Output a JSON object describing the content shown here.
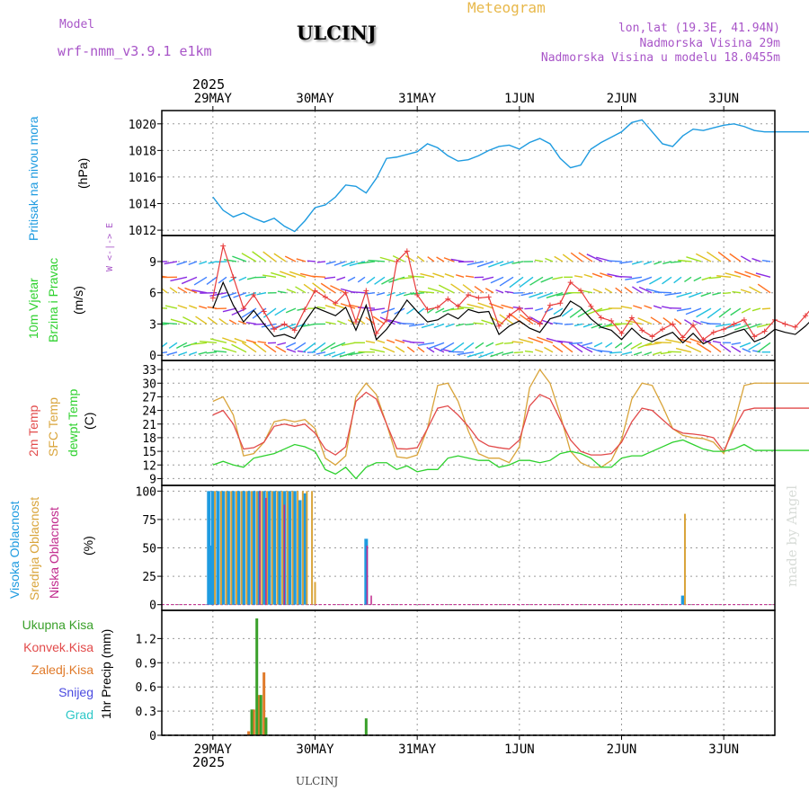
{
  "header": {
    "model_label": "Model",
    "model_name": "wrf-nmm_v3.9.1 e1km",
    "station": "ULCINJ",
    "product": "Meteogram",
    "lonlat": "lon,lat (19.3E, 41.94N)",
    "elevation": "Nadmorska Visina 29m",
    "model_elevation": "Nadmorska Visina u modelu 18.0455m",
    "year_top": "2025",
    "year_bottom": "2025",
    "footer_station": "ULCINJ",
    "watermark": "made by Angel",
    "compass": "W <-|-> E"
  },
  "colors": {
    "pressure": "#1e9be0",
    "wind_speed": "#000000",
    "gust": "#e83c3c",
    "t2m": "#e24a4a",
    "sfc": "#d9a43a",
    "dewpt": "#2ed12e",
    "high_cloud": "#1e9be0",
    "mid_cloud": "#d9a43a",
    "low_cloud": "#c0288c",
    "total_precip": "#3aa02a",
    "convective": "#e24a4a",
    "frozen": "#e07a2a",
    "snow": "#4a4ae0",
    "hail": "#2ec8c8"
  },
  "chart_data": [
    {
      "type": "line",
      "panel": "pressure",
      "ylabel_title": "Pritisak na nivou mora",
      "ylabel_unit": "(hPa)",
      "x_days": [
        0,
        0.1,
        0.2,
        0.3,
        0.4,
        0.5,
        0.6,
        0.7,
        0.8,
        0.9,
        1.0,
        1.1,
        1.2,
        1.3,
        1.4,
        1.5,
        1.6,
        1.7,
        1.8,
        1.9,
        2.0,
        2.1,
        2.2,
        2.3,
        2.4,
        2.5,
        2.6,
        2.7,
        2.8,
        2.9,
        3.0,
        3.1,
        3.2,
        3.3,
        3.4,
        3.5,
        3.6,
        3.7,
        3.8,
        3.9,
        4.0,
        4.1,
        4.2,
        4.3,
        4.4,
        4.5,
        4.6,
        4.7,
        4.8,
        4.9,
        5.0,
        5.1,
        5.2,
        5.3,
        5.4,
        5.5,
        5.6,
        5.7,
        5.8,
        5.9,
        6.0
      ],
      "values": [
        1014.5,
        1013.5,
        1013.0,
        1013.3,
        1012.9,
        1012.6,
        1012.9,
        1012.3,
        1011.9,
        1012.7,
        1013.7,
        1013.9,
        1014.5,
        1015.4,
        1015.3,
        1014.8,
        1015.9,
        1017.4,
        1017.5,
        1017.7,
        1017.9,
        1018.5,
        1018.2,
        1017.6,
        1017.2,
        1017.3,
        1017.6,
        1018.0,
        1018.3,
        1018.4,
        1018.1,
        1018.6,
        1018.9,
        1018.5,
        1017.4,
        1016.7,
        1016.9,
        1018.1,
        1018.6,
        1019.0,
        1019.4,
        1020.1,
        1020.3,
        1019.4,
        1018.5,
        1018.3,
        1019.1,
        1019.6,
        1019.5,
        1019.7,
        1019.9,
        1020.0,
        1019.8,
        1019.5,
        1019.4,
        1019.4,
        1019.4,
        1019.4,
        1019.4,
        1019.4,
        1019.4
      ],
      "ylim": [
        1011.6,
        1021.0
      ],
      "yticks": [
        1012,
        1014,
        1016,
        1018,
        1020
      ]
    },
    {
      "type": "line",
      "panel": "wind",
      "ylabel_title": "10m Vjetar",
      "ylabel_sub": "Brzina i Pravac",
      "ylabel_unit": "(m/s)",
      "x_days": [
        0,
        0.1,
        0.2,
        0.3,
        0.4,
        0.5,
        0.6,
        0.7,
        0.8,
        0.9,
        1.0,
        1.1,
        1.2,
        1.3,
        1.4,
        1.5,
        1.6,
        1.7,
        1.8,
        1.9,
        2.0,
        2.1,
        2.2,
        2.3,
        2.4,
        2.5,
        2.6,
        2.7,
        2.8,
        2.9,
        3.0,
        3.1,
        3.2,
        3.3,
        3.4,
        3.5,
        3.6,
        3.7,
        3.8,
        3.9,
        4.0,
        4.1,
        4.2,
        4.3,
        4.4,
        4.5,
        4.6,
        4.7,
        4.8,
        4.9,
        5.0,
        5.1,
        5.2,
        5.3,
        5.4,
        5.5,
        5.6,
        5.7,
        5.8,
        5.9,
        6.0
      ],
      "speed": [
        4.5,
        7.0,
        4.8,
        3.2,
        4.3,
        3.0,
        1.8,
        2.0,
        1.6,
        3.2,
        4.6,
        4.2,
        3.8,
        4.6,
        2.4,
        4.8,
        1.5,
        2.5,
        3.8,
        5.3,
        4.2,
        3.2,
        3.4,
        4.0,
        3.5,
        4.4,
        4.1,
        4.2,
        2.0,
        2.8,
        3.3,
        2.6,
        2.2,
        3.5,
        3.8,
        5.2,
        4.6,
        3.5,
        2.7,
        2.4,
        1.5,
        2.6,
        1.7,
        1.3,
        1.8,
        2.2,
        1.2,
        2.1,
        1.1,
        1.6,
        1.8,
        2.2,
        2.5,
        1.3,
        1.7,
        2.5,
        2.2,
        2.0,
        2.8,
        3.8,
        4.2
      ],
      "gust": [
        5.5,
        10.5,
        7.5,
        4.5,
        5.8,
        4.2,
        2.5,
        3.0,
        2.4,
        4.4,
        6.2,
        5.6,
        5.0,
        6.0,
        3.2,
        6.2,
        2.1,
        3.4,
        9.0,
        10.0,
        5.8,
        4.4,
        4.6,
        5.4,
        4.7,
        5.8,
        5.5,
        5.6,
        2.8,
        3.8,
        4.5,
        3.5,
        3.0,
        4.8,
        5.0,
        7.0,
        6.2,
        4.7,
        3.6,
        3.3,
        2.1,
        3.6,
        2.4,
        1.8,
        2.5,
        3.0,
        1.7,
        2.9,
        1.5,
        2.2,
        2.5,
        3.0,
        3.4,
        1.8,
        2.3,
        3.4,
        3.0,
        2.7,
        3.8,
        5.0,
        5.5
      ],
      "ylim": [
        -0.5,
        11.5
      ],
      "yticks": [
        0,
        3,
        6,
        9
      ]
    },
    {
      "type": "line",
      "panel": "temperature",
      "ylabel_title": "2m Temp",
      "ylabel_sub": "SFC Temp",
      "ylabel_sub2": "dewpt Temp",
      "ylabel_unit": "(C)",
      "x_days": [
        0,
        0.1,
        0.2,
        0.3,
        0.4,
        0.5,
        0.6,
        0.7,
        0.8,
        0.9,
        1.0,
        1.1,
        1.2,
        1.3,
        1.4,
        1.5,
        1.6,
        1.7,
        1.8,
        1.9,
        2.0,
        2.1,
        2.2,
        2.3,
        2.4,
        2.5,
        2.6,
        2.7,
        2.8,
        2.9,
        3.0,
        3.1,
        3.2,
        3.3,
        3.4,
        3.5,
        3.6,
        3.7,
        3.8,
        3.9,
        4.0,
        4.1,
        4.2,
        4.3,
        4.4,
        4.5,
        4.6,
        4.7,
        4.8,
        4.9,
        5.0,
        5.1,
        5.2,
        5.3,
        5.4,
        5.5,
        5.6,
        5.7,
        5.8,
        5.9,
        6.0
      ],
      "t2m": [
        23,
        24,
        21,
        15.5,
        15.8,
        17,
        20.5,
        21,
        20.5,
        21,
        19,
        15.5,
        14.2,
        16,
        26,
        28,
        26.5,
        21,
        15.6,
        15.5,
        15.8,
        20,
        24.5,
        25,
        23,
        20.5,
        17.5,
        16.2,
        15.8,
        15.5,
        17.5,
        25,
        27.5,
        26.5,
        22,
        17.5,
        15,
        14.2,
        14.2,
        14.5,
        17,
        21.5,
        24.5,
        24,
        22,
        20,
        19,
        18.8,
        18.5,
        18,
        15,
        20,
        24,
        24.5,
        24.5,
        24.5,
        24.5,
        24.5,
        24.5,
        24.5,
        24.5
      ],
      "sfc": [
        26,
        27,
        23,
        14,
        14.5,
        17,
        21.5,
        22,
        21.5,
        22,
        20,
        13.5,
        12,
        14,
        27,
        30,
        27.5,
        21,
        13.8,
        13.5,
        14.2,
        20,
        29.5,
        30,
        26,
        19.5,
        14.5,
        13.5,
        13.5,
        12.5,
        16,
        29,
        33,
        30,
        23,
        15,
        12.5,
        11.5,
        11.5,
        13,
        17.5,
        26.5,
        30,
        29.5,
        25,
        20,
        18.5,
        18,
        17.8,
        17,
        14.5,
        21,
        29.5,
        30,
        30,
        30,
        30,
        30,
        30,
        30,
        30
      ],
      "dewpt": [
        12,
        12.8,
        12,
        11.5,
        13.5,
        14,
        14.5,
        15.5,
        16.5,
        16,
        15,
        11,
        10,
        11.5,
        9,
        11.5,
        12.5,
        12.5,
        11,
        11.8,
        10.5,
        11,
        11,
        13.5,
        14,
        13.5,
        13,
        13,
        11.5,
        12,
        13,
        13,
        12.5,
        13,
        14.5,
        15,
        14.5,
        13.5,
        11.5,
        11.5,
        13.5,
        14,
        14,
        15,
        16,
        17,
        17.5,
        16.5,
        15.5,
        15,
        15,
        15.5,
        16.5,
        15.2,
        15.2,
        15.2,
        15.2,
        15.2,
        15.2,
        15.2,
        15.2
      ],
      "ylim": [
        7.5,
        35
      ],
      "yticks": [
        9,
        12,
        15,
        18,
        21,
        24,
        27,
        30,
        33
      ]
    },
    {
      "type": "bar",
      "panel": "cloud",
      "ylabel_title": "Visoka Oblacnost",
      "ylabel_sub": "Srednja Oblacnost",
      "ylabel_sub2": "Niska Oblacnost",
      "ylabel_unit": "(%)",
      "high": [
        [
          -0.04,
          100
        ],
        [
          -0.02,
          52
        ],
        [
          0.0,
          100
        ],
        [
          0.05,
          100
        ],
        [
          0.1,
          100
        ],
        [
          0.15,
          100
        ],
        [
          0.2,
          100
        ],
        [
          0.25,
          100
        ],
        [
          0.3,
          100
        ],
        [
          0.35,
          100
        ],
        [
          0.4,
          100
        ],
        [
          0.45,
          100
        ],
        [
          0.5,
          100
        ],
        [
          0.55,
          100
        ],
        [
          0.6,
          100
        ],
        [
          0.65,
          100
        ],
        [
          0.7,
          100
        ],
        [
          0.75,
          100
        ],
        [
          0.8,
          100
        ],
        [
          0.85,
          92
        ],
        [
          0.9,
          98
        ],
        [
          1.5,
          58
        ],
        [
          4.6,
          8
        ]
      ],
      "mid": [
        [
          0.02,
          100
        ],
        [
          0.08,
          100
        ],
        [
          0.13,
          100
        ],
        [
          0.18,
          100
        ],
        [
          0.23,
          100
        ],
        [
          0.28,
          100
        ],
        [
          0.33,
          100
        ],
        [
          0.38,
          100
        ],
        [
          0.43,
          100
        ],
        [
          0.48,
          100
        ],
        [
          0.53,
          100
        ],
        [
          0.58,
          100
        ],
        [
          0.63,
          100
        ],
        [
          0.68,
          100
        ],
        [
          0.73,
          100
        ],
        [
          0.78,
          100
        ],
        [
          0.83,
          100
        ],
        [
          0.88,
          100
        ],
        [
          0.92,
          100
        ],
        [
          0.97,
          100
        ],
        [
          1.0,
          20
        ],
        [
          4.62,
          80
        ]
      ],
      "low": [
        [
          0.46,
          100
        ],
        [
          0.52,
          94
        ],
        [
          0.7,
          88
        ],
        [
          1.51,
          52
        ],
        [
          1.55,
          8
        ]
      ],
      "ylim": [
        -5,
        105
      ],
      "yticks": [
        0,
        25,
        50,
        75,
        100
      ]
    },
    {
      "type": "bar",
      "panel": "precip",
      "ylabel": "1hr Precip (mm)",
      "legend": [
        "Ukupna Kisa",
        "Konvek.Kisa",
        "Zaledj.Kisa",
        "Snijeg",
        "Grad"
      ],
      "total": [
        [
          0.38,
          0.32
        ],
        [
          0.43,
          1.45
        ],
        [
          0.47,
          0.5
        ],
        [
          0.52,
          0.22
        ],
        [
          1.5,
          0.21
        ]
      ],
      "frozen": [
        [
          0.35,
          0.05
        ],
        [
          0.4,
          0.32
        ],
        [
          0.45,
          0.5
        ],
        [
          0.5,
          0.78
        ]
      ],
      "ylim": [
        0,
        1.55
      ],
      "yticks": [
        0,
        0.3,
        0.6,
        0.9,
        1.2
      ]
    }
  ],
  "xaxis": {
    "start_offset_days": -0.5,
    "end_offset_days": 5.5,
    "day_labels": [
      "29MAY",
      "30MAY",
      "31MAY",
      "1JUN",
      "2JUN",
      "3JUN"
    ]
  }
}
